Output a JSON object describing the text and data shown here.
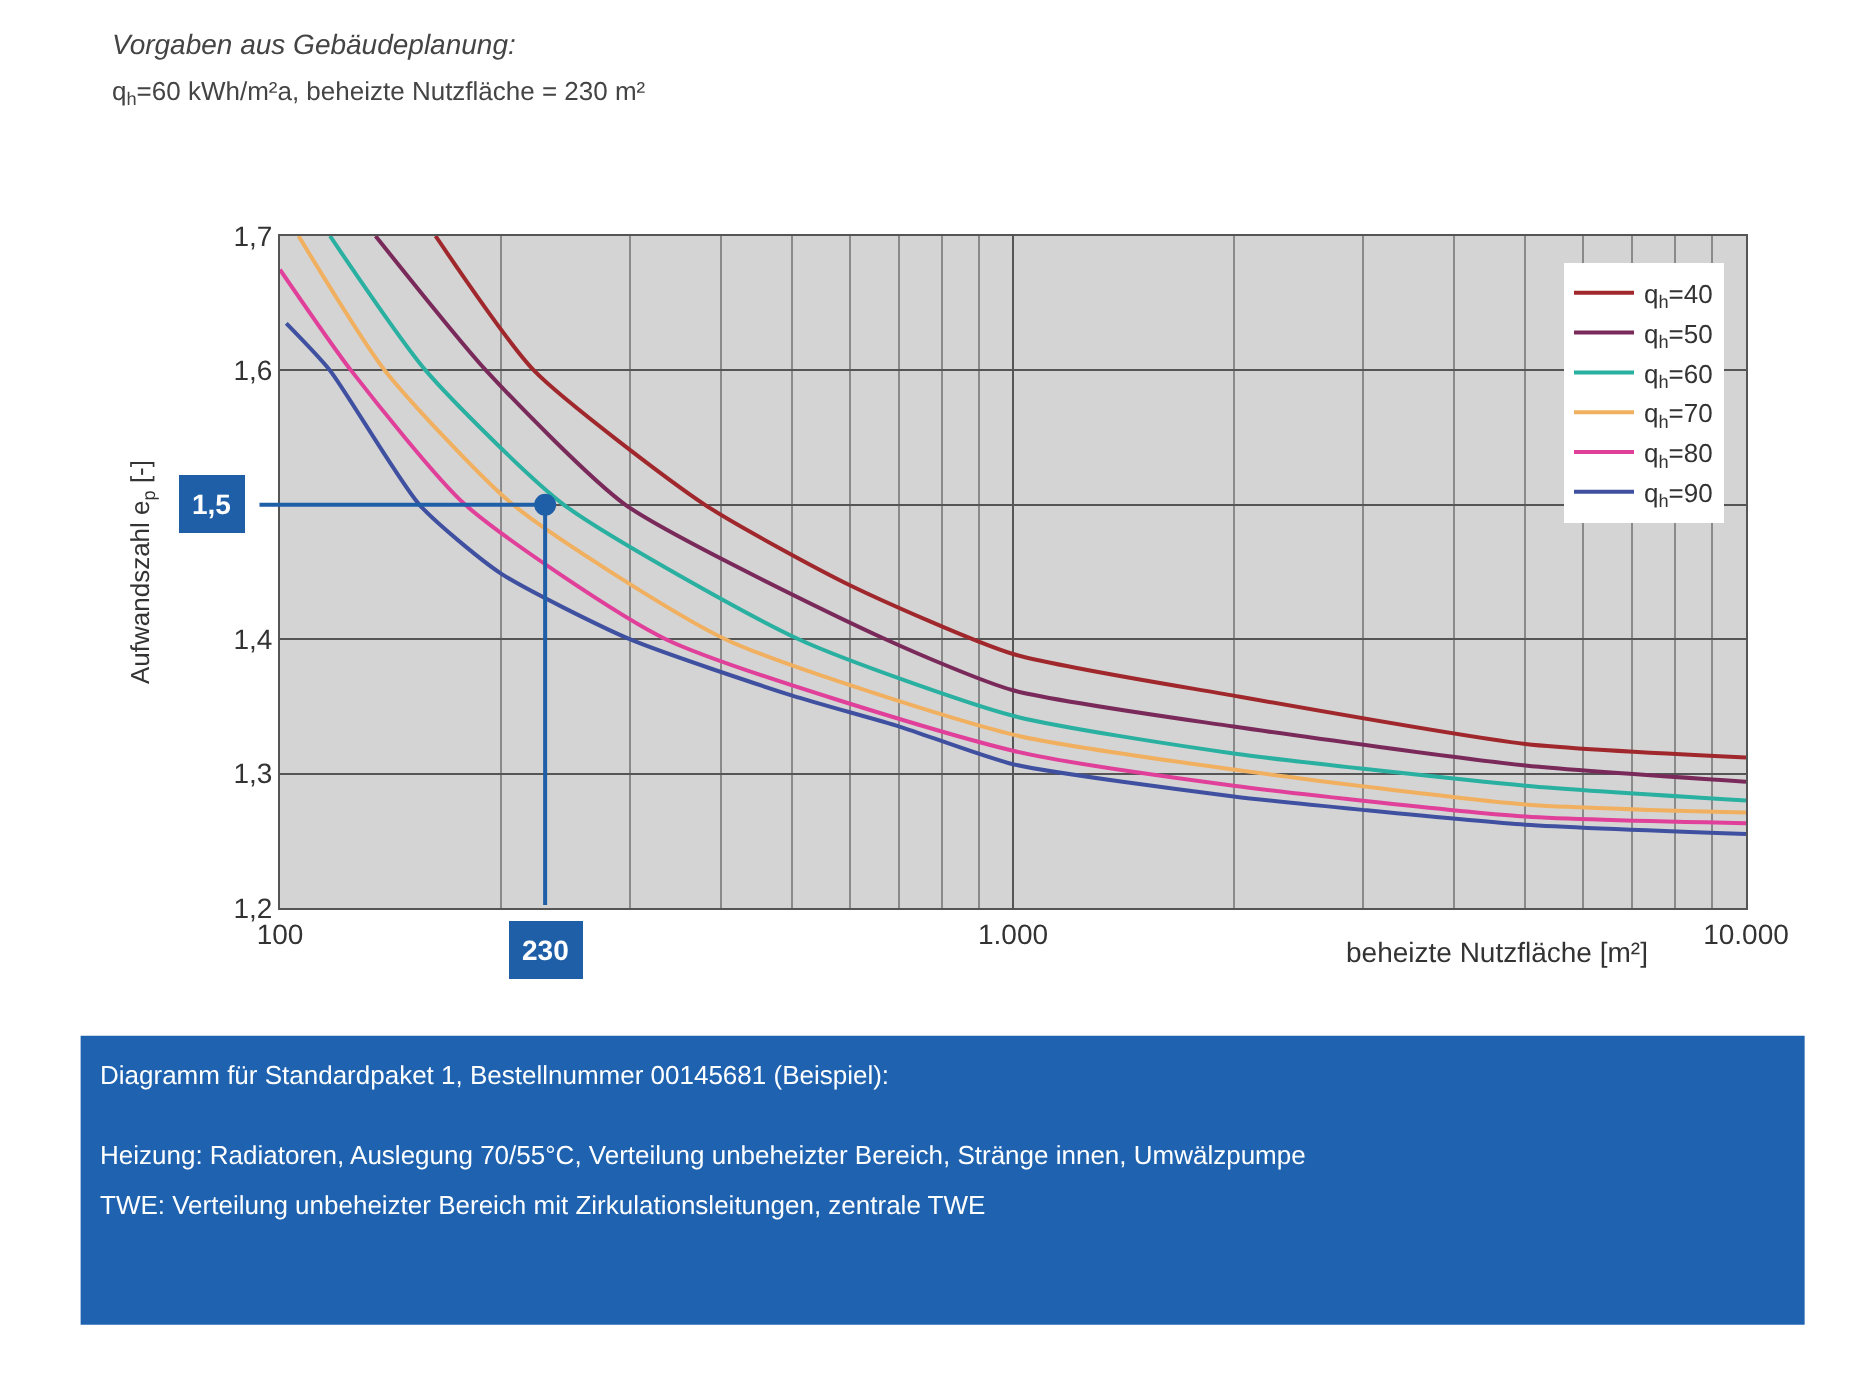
{
  "chart_data": {
    "type": "line",
    "title": "Vorgaben aus Gebäudeplanung:",
    "subtitle": "q$_{h}$=60 kWh/m²a, beheizte Nutzfläche = 230 m²",
    "xlabel": "beheizte Nutzfläche [m²]",
    "ylabel": "Aufwandszahl e$_{p}$ [-]",
    "log": "x",
    "xlim": [
      100,
      10000
    ],
    "xticks": [
      100,
      {
        "value": 1000,
        "label": "1.000"
      },
      {
        "value": 10000,
        "label": "10.000"
      }
    ],
    "ylim": [
      1.2,
      1.7
    ],
    "yticks": [
      {
        "value": 1.2,
        "label": "1,2"
      },
      {
        "value": 1.3,
        "label": "1,3"
      },
      {
        "value": 1.4,
        "label": "1,4"
      },
      {
        "value": 1.5,
        "label": null
      },
      {
        "value": 1.6,
        "label": "1,6"
      },
      {
        "value": 1.7,
        "label": "1,7"
      }
    ],
    "grid": true,
    "legend": "top right",
    "line_style": "solid",
    "series": [
      {
        "name": "q$_{h}$=40",
        "color": "#a0282d",
        "x": [
          163,
          222,
          380,
          600,
          1000,
          2000,
          5000,
          10000
        ],
        "values": [
          1.7,
          1.6,
          1.5,
          1.44,
          1.389,
          1.358,
          1.322,
          1.312
        ]
      },
      {
        "name": "q$_{h}$=50",
        "color": "#7a2a5a",
        "x": [
          135,
          191,
          296,
          670,
          1000,
          2000,
          5000,
          10000
        ],
        "values": [
          1.7,
          1.6,
          1.5,
          1.4,
          1.362,
          1.335,
          1.306,
          1.294
        ]
      },
      {
        "name": "q$_{h}$=60",
        "color": "#2ab0a0",
        "x": [
          117,
          158,
          244,
          510,
          1000,
          2000,
          5000,
          10000
        ],
        "values": [
          1.7,
          1.6,
          1.5,
          1.4,
          1.343,
          1.315,
          1.291,
          1.28
        ]
      },
      {
        "name": "q$_{h}$=70",
        "color": "#f0b060",
        "x": [
          106,
          139,
          208,
          405,
          1000,
          2000,
          5000,
          10000
        ],
        "values": [
          1.7,
          1.6,
          1.5,
          1.4,
          1.329,
          1.303,
          1.277,
          1.271
        ]
      },
      {
        "name": "q$_{h}$=80",
        "color": "#e0409a",
        "x": [
          100,
          125,
          179,
          336,
          1000,
          2000,
          5000,
          10000
        ],
        "values": [
          1.675,
          1.6,
          1.5,
          1.4,
          1.317,
          1.291,
          1.268,
          1.263
        ]
      },
      {
        "name": "q$_{h}$=90",
        "color": "#4050a0",
        "x": [
          102,
          117,
          155,
          200,
          300,
          500,
          700,
          1000,
          2000,
          3000,
          5000,
          10000
        ],
        "values": [
          1.635,
          1.6,
          1.5,
          1.449,
          1.4,
          1.358,
          1.335,
          1.307,
          1.283,
          1.273,
          1.262,
          1.255
        ]
      },
      {
        "type": "scatter",
        "color": "#1f5fa8",
        "x": [
          230
        ],
        "values": [
          1.5
        ]
      }
    ],
    "ref_lines": [
      {
        "axis": "y",
        "value": 1.5,
        "label": "1,5",
        "color": "#1f5fa8"
      },
      {
        "axis": "x",
        "value": 230,
        "label": "230",
        "color": "#1f5fa8"
      }
    ],
    "annotations": [
      "Diagramm für Standardpaket 1, Bestellnummer 00145681 (Beispiel):",
      "Heizung: Radiatoren, Auslegung 70/55°C, Verteilung unbeheizter Bereich, Stränge innen, Umwälzpumpe",
      "TWE: Verteilung unbeheizter Bereich mit Zirkulationsleitungen, zentrale TWE"
    ]
  }
}
